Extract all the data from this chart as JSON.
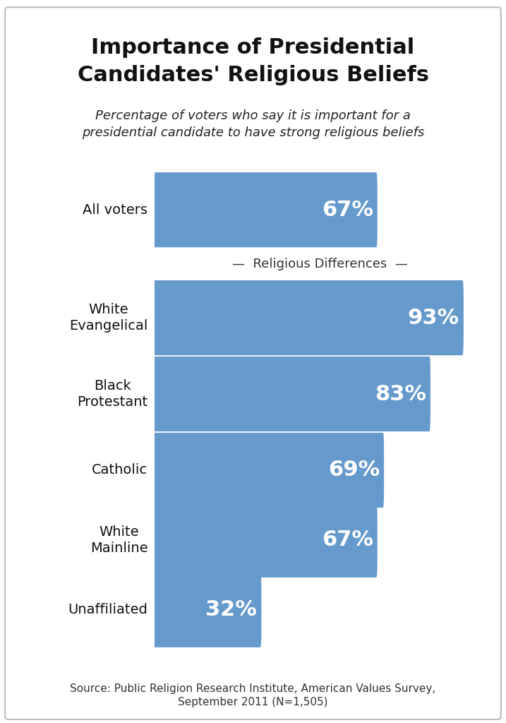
{
  "title": "Importance of Presidential\nCandidates' Religious Beliefs",
  "subtitle": "Percentage of voters who say it is important for a\npresidential candidate to have strong religious beliefs",
  "section_label": "—  Religious Differences  —",
  "categories": [
    "All voters",
    "White\nEvangelical",
    "Black\nProtestant",
    "Catholic",
    "White\nMainline",
    "Unaffiliated"
  ],
  "values": [
    67,
    93,
    83,
    69,
    67,
    32
  ],
  "labels": [
    "67%",
    "93%",
    "83%",
    "69%",
    "67%",
    "32%"
  ],
  "bar_color": "#6699cc",
  "bar_text_color": "#ffffff",
  "background_color": "#ffffff",
  "border_color": "#aaaaaa",
  "title_fontsize": 22,
  "subtitle_fontsize": 13,
  "label_fontsize": 14,
  "bar_label_fontsize": 22,
  "source_text": "Source: Public Religion Research Institute, American Values Survey,\nSeptember 2011 (N=1,505)",
  "source_fontsize": 11,
  "section_fontsize": 13,
  "max_value": 100
}
